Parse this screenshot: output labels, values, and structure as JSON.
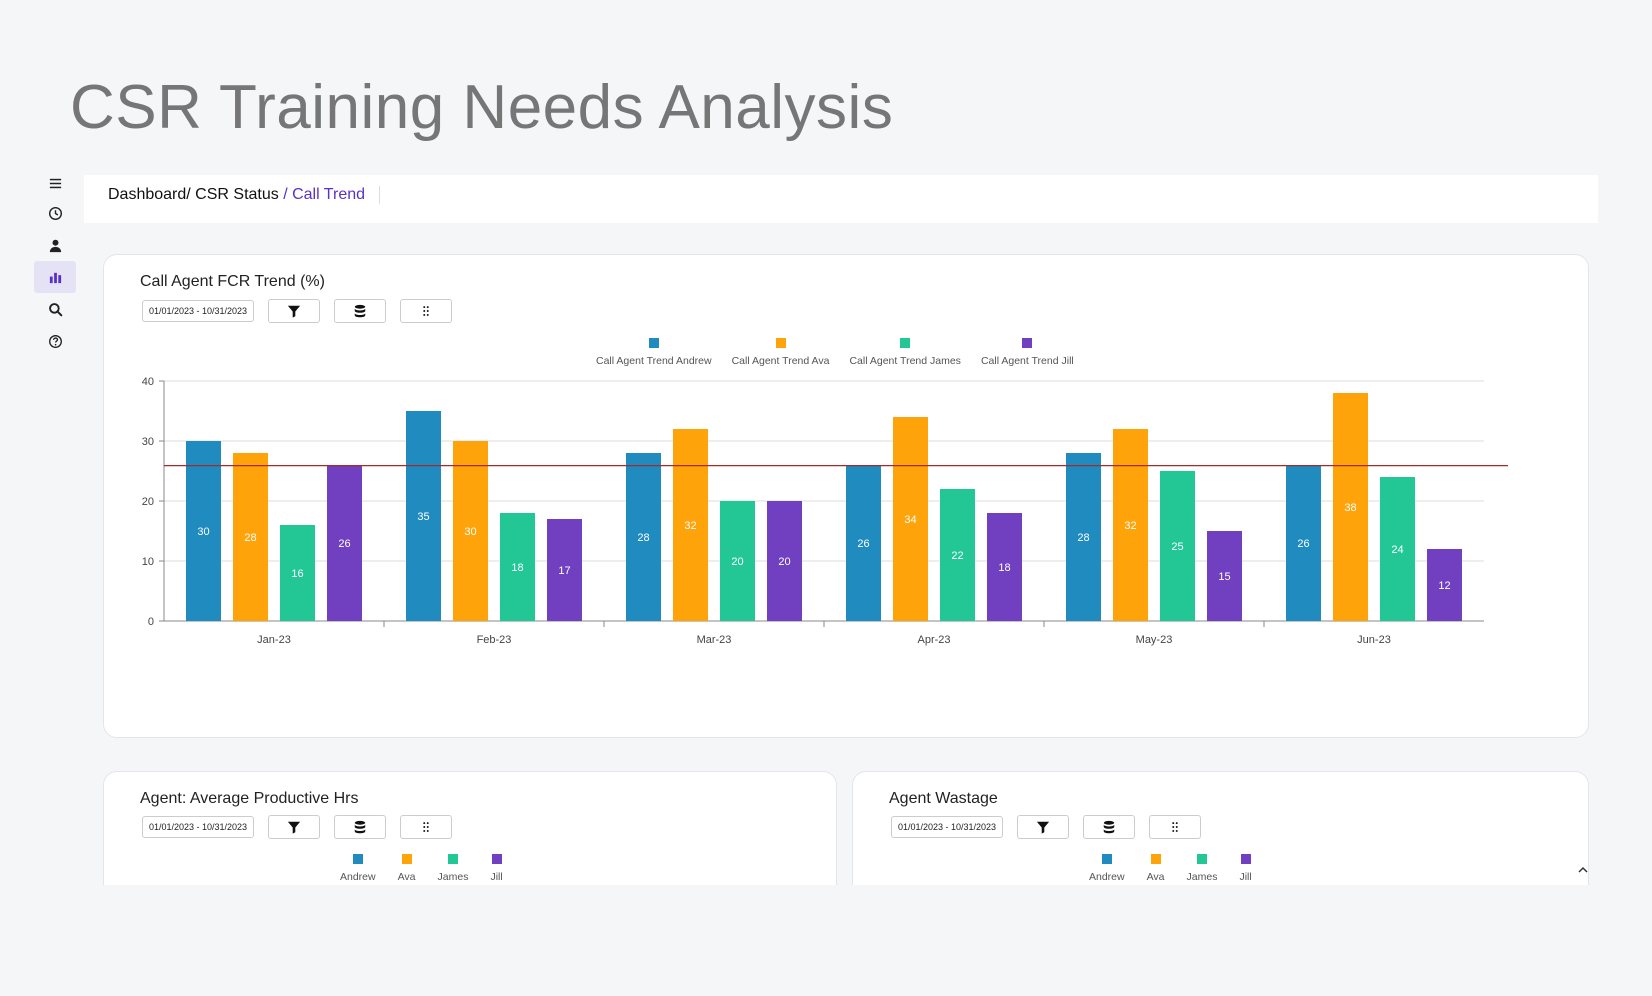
{
  "page_title": "CSR Training Needs Analysis",
  "sidebar": {
    "items": [
      {
        "icon": "menu-icon"
      },
      {
        "icon": "clock-icon"
      },
      {
        "icon": "user-icon"
      },
      {
        "icon": "bar-chart-icon",
        "active": true
      },
      {
        "icon": "search-icon"
      },
      {
        "icon": "help-icon"
      }
    ]
  },
  "breadcrumb": {
    "part1": "Dashboard/",
    "part2": " CSR Status",
    "current": " / Call Trend"
  },
  "colors": {
    "andrew": "#1f8bbf",
    "ava": "#ffa30a",
    "james": "#22c795",
    "jill": "#7140c0",
    "avg_line": "#a52a2a",
    "accent": "#5a31c8"
  },
  "cards": {
    "fcr": {
      "title": "Call Agent FCR Trend (%)",
      "date_range": "01/01/2023 - 10/31/2023",
      "legend": [
        "Call Agent Trend Andrew",
        "Call Agent Trend Ava",
        "Call Agent Trend James",
        "Call Agent Trend Jill"
      ]
    },
    "productive": {
      "title": "Agent: Average Productive Hrs",
      "date_range": "01/01/2023 - 10/31/2023",
      "legend": [
        "Andrew",
        "Ava",
        "James",
        "Jill"
      ]
    },
    "wastage": {
      "title": "Agent Wastage",
      "date_range": "01/01/2023 - 10/31/2023",
      "legend": [
        "Andrew",
        "Ava",
        "James",
        "Jill"
      ]
    }
  },
  "chart_data": {
    "type": "bar",
    "title": "Call Agent FCR Trend (%)",
    "categories": [
      "Jan-23",
      "Feb-23",
      "Mar-23",
      "Apr-23",
      "May-23",
      "Jun-23"
    ],
    "series": [
      {
        "name": "Call Agent Trend Andrew",
        "values": [
          30,
          35,
          28,
          26,
          28,
          26
        ]
      },
      {
        "name": "Call Agent Trend Ava",
        "values": [
          28,
          30,
          32,
          34,
          32,
          38
        ]
      },
      {
        "name": "Call Agent Trend James",
        "values": [
          16,
          18,
          20,
          22,
          25,
          24
        ]
      },
      {
        "name": "Call Agent Trend Jill",
        "values": [
          26,
          17,
          20,
          18,
          15,
          12
        ]
      }
    ],
    "ylim": [
      0,
      40
    ],
    "yticks": [
      0,
      10,
      20,
      30,
      40
    ],
    "average_line": 25.9,
    "grid": true,
    "legend_position": "top-center",
    "data_labels": true
  }
}
